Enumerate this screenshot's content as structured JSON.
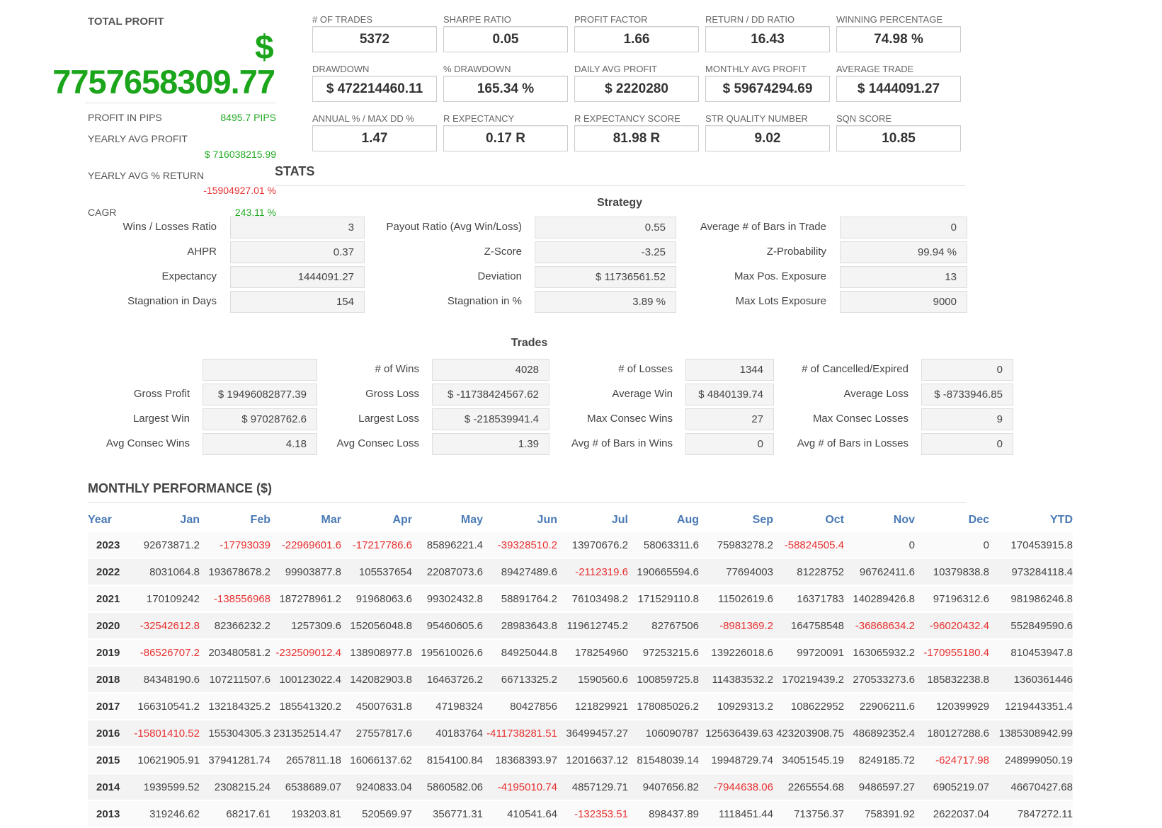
{
  "total": {
    "title": "TOTAL PROFIT",
    "currency": "$",
    "amount": "7757658309.77",
    "pips_label": "PROFIT IN PIPS",
    "pips_value": "8495.7 PIPS",
    "yearly_avg_label": "YEARLY AVG PROFIT",
    "yearly_avg_value": "$ 716038215.99",
    "yearly_ret_label": "YEARLY AVG % RETURN",
    "yearly_ret_value": "-15904927.01 %",
    "cagr_label": "CAGR",
    "cagr_value": "243.11 %"
  },
  "kpis": [
    {
      "label": "# OF TRADES",
      "value": "5372"
    },
    {
      "label": "SHARPE RATIO",
      "value": "0.05"
    },
    {
      "label": "PROFIT FACTOR",
      "value": "1.66"
    },
    {
      "label": "RETURN / DD RATIO",
      "value": "16.43"
    },
    {
      "label": "WINNING PERCENTAGE",
      "value": "74.98 %"
    },
    {
      "label": "DRAWDOWN",
      "value": "$ 472214460.11"
    },
    {
      "label": "% DRAWDOWN",
      "value": "165.34 %"
    },
    {
      "label": "DAILY AVG PROFIT",
      "value": "$ 2220280"
    },
    {
      "label": "MONTHLY AVG PROFIT",
      "value": "$ 59674294.69"
    },
    {
      "label": "AVERAGE TRADE",
      "value": "$ 1444091.27"
    },
    {
      "label": "ANNUAL % / MAX DD %",
      "value": "1.47"
    },
    {
      "label": "R EXPECTANCY",
      "value": "0.17 R"
    },
    {
      "label": "R EXPECTANCY SCORE",
      "value": "81.98 R"
    },
    {
      "label": "STR QUALITY NUMBER",
      "value": "9.02"
    },
    {
      "label": "SQN SCORE",
      "value": "10.85"
    }
  ],
  "stats_title": "STATS",
  "strategy": {
    "title": "Strategy",
    "rows": [
      [
        {
          "label": "Wins / Losses Ratio",
          "value": "3"
        },
        {
          "label": "Payout Ratio (Avg Win/Loss)",
          "value": "0.55"
        },
        {
          "label": "Average # of Bars in Trade",
          "value": "0"
        }
      ],
      [
        {
          "label": "AHPR",
          "value": "0.37"
        },
        {
          "label": "Z-Score",
          "value": "-3.25"
        },
        {
          "label": "Z-Probability",
          "value": "99.94 %"
        }
      ],
      [
        {
          "label": "Expectancy",
          "value": "1444091.27"
        },
        {
          "label": "Deviation",
          "value": "$ 11736561.52"
        },
        {
          "label": "Max Pos. Exposure",
          "value": "13"
        }
      ],
      [
        {
          "label": "Stagnation in Days",
          "value": "154"
        },
        {
          "label": "Stagnation in %",
          "value": "3.89 %"
        },
        {
          "label": "Max Lots Exposure",
          "value": "9000"
        }
      ]
    ]
  },
  "trades": {
    "title": "Trades",
    "rows": [
      [
        {
          "label": "",
          "value": ""
        },
        {
          "label": "# of Wins",
          "value": "4028"
        },
        {
          "label": "# of Losses",
          "value": "1344"
        },
        {
          "label": "# of Cancelled/Expired",
          "value": "0"
        }
      ],
      [
        {
          "label": "Gross Profit",
          "value": "$ 19496082877.39"
        },
        {
          "label": "Gross Loss",
          "value": "$ -11738424567.62"
        },
        {
          "label": "Average Win",
          "value": "$ 4840139.74"
        },
        {
          "label": "Average Loss",
          "value": "$ -8733946.85"
        }
      ],
      [
        {
          "label": "Largest Win",
          "value": "$ 97028762.6"
        },
        {
          "label": "Largest Loss",
          "value": "$ -218539941.4"
        },
        {
          "label": "Max Consec Wins",
          "value": "27"
        },
        {
          "label": "Max Consec Losses",
          "value": "9"
        }
      ],
      [
        {
          "label": "Avg Consec Wins",
          "value": "4.18"
        },
        {
          "label": "Avg Consec Loss",
          "value": "1.39"
        },
        {
          "label": "Avg # of Bars in Wins",
          "value": "0"
        },
        {
          "label": "Avg # of Bars in Losses",
          "value": "0"
        }
      ]
    ]
  },
  "monthly": {
    "title": "MONTHLY PERFORMANCE ($)",
    "headers": [
      "Year",
      "Jan",
      "Feb",
      "Mar",
      "Apr",
      "May",
      "Jun",
      "Jul",
      "Aug",
      "Sep",
      "Oct",
      "Nov",
      "Dec",
      "YTD"
    ],
    "rows": [
      [
        "2023",
        "92673871.2",
        "-17793039",
        "-22969601.6",
        "-17217786.6",
        "85896221.4",
        "-39328510.2",
        "13970676.2",
        "58063311.6",
        "75983278.2",
        "-58824505.4",
        "0",
        "0",
        "170453915.8"
      ],
      [
        "2022",
        "8031064.8",
        "193678678.2",
        "99903877.8",
        "105537654",
        "22087073.6",
        "89427489.6",
        "-2112319.6",
        "190665594.6",
        "77694003",
        "81228752",
        "96762411.6",
        "10379838.8",
        "973284118.4"
      ],
      [
        "2021",
        "170109242",
        "-138556968",
        "187278961.2",
        "91968063.6",
        "99302432.8",
        "58891764.2",
        "76103498.2",
        "171529110.8",
        "11502619.6",
        "16371783",
        "140289426.8",
        "97196312.6",
        "981986246.8"
      ],
      [
        "2020",
        "-32542612.8",
        "82366232.2",
        "1257309.6",
        "152056048.8",
        "95460605.6",
        "28983643.8",
        "119612745.2",
        "82767506",
        "-8981369.2",
        "164758548",
        "-36868634.2",
        "-96020432.4",
        "552849590.6"
      ],
      [
        "2019",
        "-86526707.2",
        "203480581.2",
        "-232509012.4",
        "138908977.8",
        "195610026.6",
        "84925044.8",
        "178254960",
        "97253215.6",
        "139226018.6",
        "99720091",
        "163065932.2",
        "-170955180.4",
        "810453947.8"
      ],
      [
        "2018",
        "84348190.6",
        "107211507.6",
        "100123022.4",
        "142082903.8",
        "16463726.2",
        "66713325.2",
        "1590560.6",
        "100859725.8",
        "114383532.2",
        "170219439.2",
        "270533273.6",
        "185832238.8",
        "1360361446"
      ],
      [
        "2017",
        "166310541.2",
        "132184325.2",
        "185541320.2",
        "45007631.8",
        "47198324",
        "80427856",
        "121829921",
        "178085026.2",
        "10929313.2",
        "108622952",
        "22906211.6",
        "120399929",
        "1219443351.4"
      ],
      [
        "2016",
        "-15801410.52",
        "155304305.3",
        "231352514.47",
        "27557817.6",
        "40183764",
        "-411738281.51",
        "36499457.27",
        "106090787",
        "125636439.63",
        "423203908.75",
        "486892352.4",
        "180127288.6",
        "1385308942.99"
      ],
      [
        "2015",
        "10621905.91",
        "37941281.74",
        "2657811.18",
        "16066137.62",
        "8154100.84",
        "18368393.97",
        "12016637.12",
        "81548039.14",
        "19948729.74",
        "34051545.19",
        "8249185.72",
        "-624717.98",
        "248999050.19"
      ],
      [
        "2014",
        "1939599.52",
        "2308215.24",
        "6538689.07",
        "9240833.04",
        "5860582.06",
        "-4195010.74",
        "4857129.71",
        "9407656.82",
        "-7944638.06",
        "2265554.68",
        "9486597.27",
        "6905219.07",
        "46670427.68"
      ],
      [
        "2013",
        "319246.62",
        "68217.61",
        "193203.81",
        "520569.97",
        "356771.31",
        "410541.64",
        "-132353.51",
        "898437.89",
        "1118451.44",
        "713756.37",
        "758391.92",
        "2622037.04",
        "7847272.11"
      ]
    ]
  }
}
